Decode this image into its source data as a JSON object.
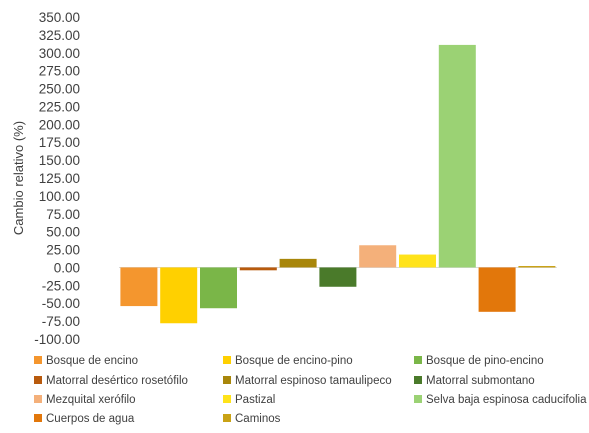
{
  "chart_data": {
    "type": "bar",
    "title": "",
    "xlabel": "",
    "ylabel": "Cambio relativo (%)",
    "ylim": [
      -100,
      350
    ],
    "ytick_step": 25,
    "ytick_labels": [
      "350.00",
      "325.00",
      "300.00",
      "275.00",
      "250.00",
      "225.00",
      "200.00",
      "175.00",
      "150.00",
      "125.00",
      "100.00",
      "75.00",
      "50.00",
      "25.00",
      "0.00",
      "-25.00",
      "-50.00",
      "-75.00",
      "-100.00"
    ],
    "grid": false,
    "legend_position": "bottom",
    "categories": [
      "Bosque de encino",
      "Bosque de encino-pino",
      "Bosque de pino-encino",
      "Matorral desértico rosetófilo",
      "Matorral espinoso tamaulipeco",
      "Matorral submontano",
      "Mezquital xerófilo",
      "Pastizal",
      "Selva baja espinosa caducifolia",
      "Cuerpos de agua",
      "Caminos"
    ],
    "values": [
      -54,
      -78,
      -57,
      -4,
      12,
      -27,
      31,
      18,
      311,
      -62,
      2
    ],
    "colors": [
      "#F4962E",
      "#FFD000",
      "#7AB648",
      "#B85A0D",
      "#A8860A",
      "#4A7A2A",
      "#F4B07A",
      "#FFE31A",
      "#9BD274",
      "#E2770B",
      "#C9A215"
    ]
  }
}
